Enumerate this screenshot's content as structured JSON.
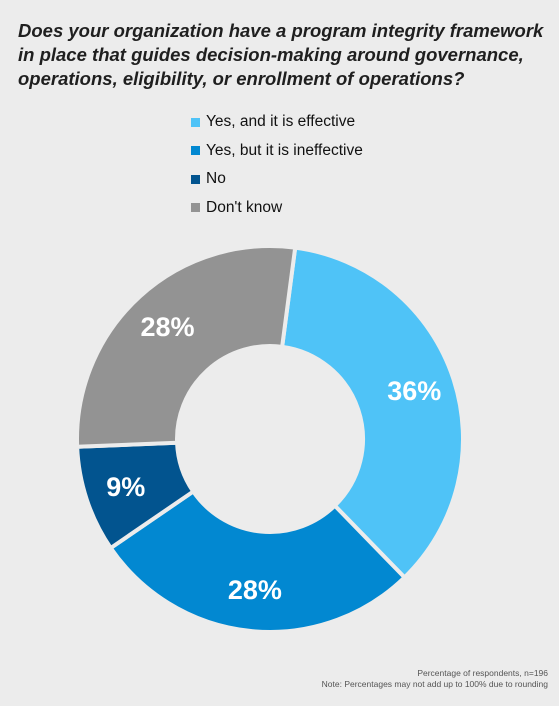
{
  "title": "Does your organization have a program integrity framework in place that guides decision-making around governance, operations, eligibility, or enrollment of operations?",
  "chart_data": {
    "type": "pie",
    "variant": "donut",
    "legend_position": "top",
    "slices": [
      {
        "label": "Yes, and it is effective",
        "value": 36,
        "display": "36%",
        "color": "#4fc3f7"
      },
      {
        "label": "Yes, but it is ineffective",
        "value": 28,
        "display": "28%",
        "color": "#0288d1"
      },
      {
        "label": "No",
        "value": 9,
        "display": "9%",
        "color": "#02548f"
      },
      {
        "label": "Don't know",
        "value": 28,
        "display": "28%",
        "color": "#939393"
      }
    ]
  },
  "footnote": {
    "line1": "Percentage of respondents, n=196",
    "line2": "Note: Percentages may not add up to 100% due to rounding"
  }
}
